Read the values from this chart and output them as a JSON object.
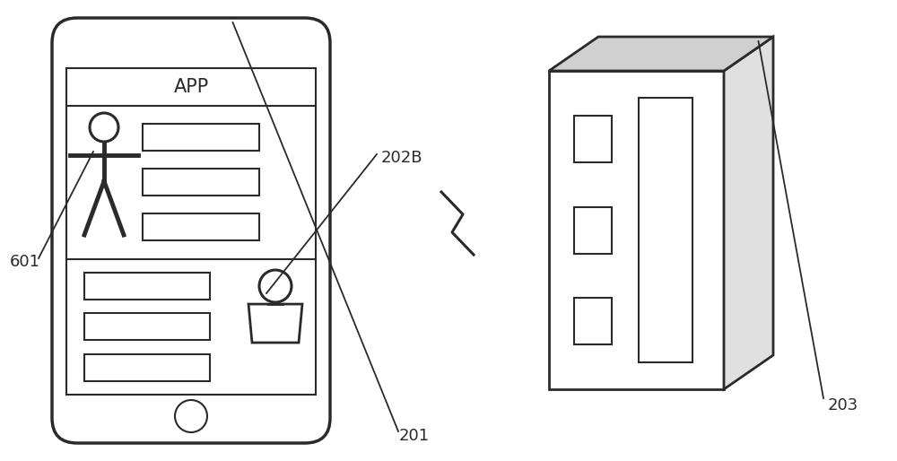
{
  "bg_color": "#ffffff",
  "line_color": "#2a2a2a",
  "label_201": "201",
  "label_202B": "202B",
  "label_203": "203",
  "label_601": "601",
  "label_APP": "APP",
  "figsize": [
    10.0,
    5.14
  ],
  "dpi": 100
}
